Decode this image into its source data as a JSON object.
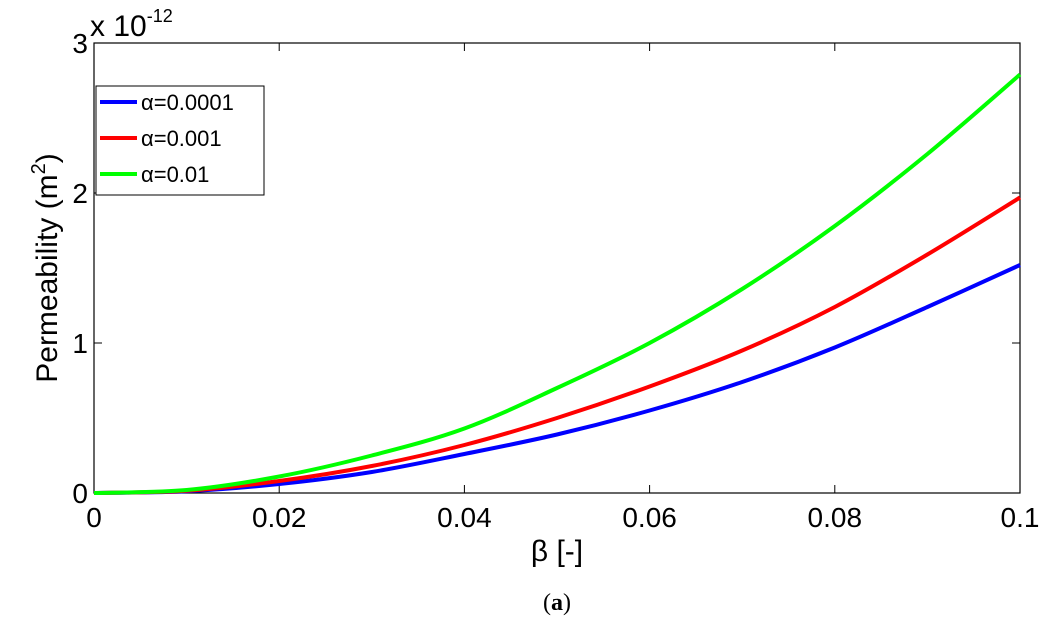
{
  "chart_data": {
    "type": "line",
    "xlabel": "β [-]",
    "ylabel_prefix": "Permeability (m",
    "ylabel_sup": "2",
    "ylabel_suffix": ")",
    "y_exponent_prefix": "x 10",
    "y_exponent_sup": "-12",
    "xlim": [
      0,
      0.1
    ],
    "ylim": [
      0,
      3
    ],
    "xticks": [
      "0",
      "0.02",
      "0.04",
      "0.06",
      "0.08",
      "0.1"
    ],
    "yticks": [
      "0",
      "1",
      "2",
      "3"
    ],
    "grid": false,
    "legend_position": "top-left",
    "x": [
      0,
      0.01,
      0.02,
      0.03,
      0.04,
      0.05,
      0.06,
      0.07,
      0.08,
      0.09,
      0.1
    ],
    "series": [
      {
        "name": "α=0.0001",
        "color": "#0000ff",
        "values": [
          0,
          0.012,
          0.06,
          0.14,
          0.26,
          0.39,
          0.55,
          0.74,
          0.97,
          1.24,
          1.52
        ]
      },
      {
        "name": "α=0.001",
        "color": "#ff0000",
        "values": [
          0,
          0.015,
          0.08,
          0.18,
          0.32,
          0.5,
          0.71,
          0.95,
          1.24,
          1.59,
          1.97
        ]
      },
      {
        "name": "α=0.01",
        "color": "#00ff00",
        "values": [
          0,
          0.02,
          0.11,
          0.25,
          0.43,
          0.7,
          1.0,
          1.36,
          1.78,
          2.26,
          2.79
        ]
      }
    ]
  },
  "caption": {
    "open": "(",
    "letter": "a",
    "close": ")"
  }
}
